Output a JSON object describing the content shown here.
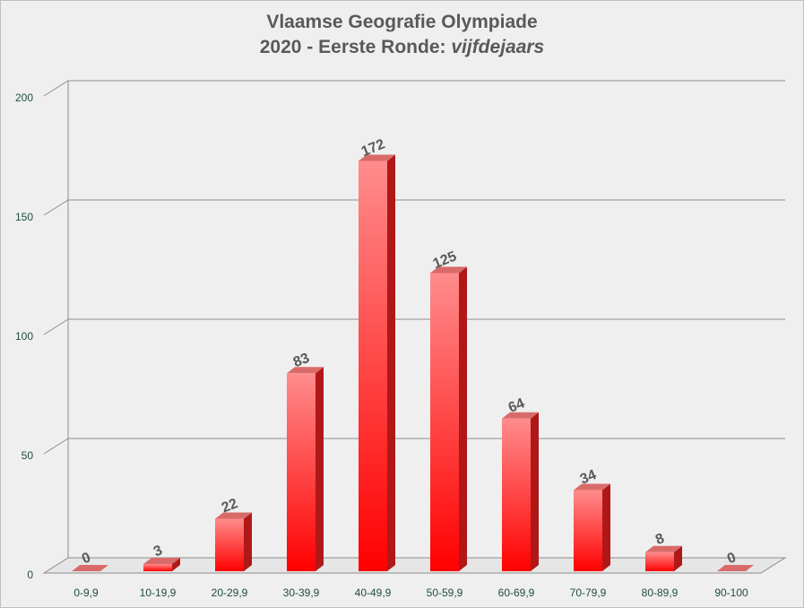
{
  "chart_data": {
    "type": "bar",
    "title_line1": "Vlaamse Geografie Olympiade",
    "title_line2_prefix": "2020 - Eerste Ronde: ",
    "title_line2_italic": "vijfdejaars",
    "categories": [
      "0-9,9",
      "10-19,9",
      "20-29,9",
      "30-39,9",
      "40-49,9",
      "50-59,9",
      "60-69,9",
      "70-79,9",
      "80-89,9",
      "90-100"
    ],
    "values": [
      0,
      3,
      22,
      83,
      172,
      125,
      64,
      34,
      8,
      0
    ],
    "ylim": [
      0,
      200
    ],
    "yticks": [
      "0",
      "50",
      "100",
      "150",
      "200"
    ],
    "grid": true,
    "xlabel": "",
    "ylabel": "",
    "colors": {
      "bar_top": "#ff8c8c",
      "bar_bottom": "#ff0000",
      "bar_side": "#b01818",
      "bar_cap": "#d96a6a",
      "data_label": "#595959",
      "axis_label": "#1f4e3d",
      "grid": "#8c8c8c"
    }
  }
}
